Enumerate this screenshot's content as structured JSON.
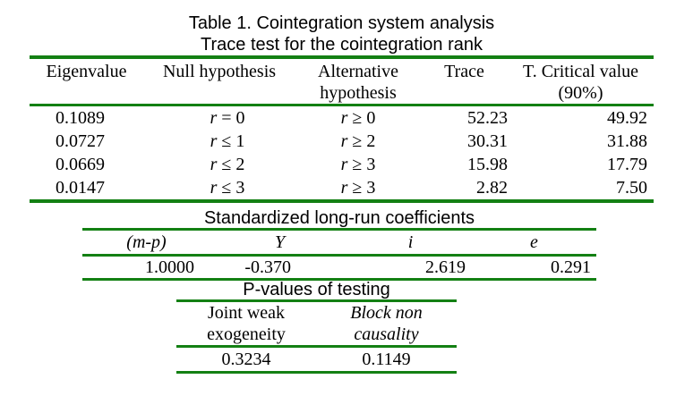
{
  "title": {
    "line1": "Table 1. Cointegration system analysis",
    "line2": "Trace test for the cointegration rank"
  },
  "trace_table": {
    "headers": {
      "eigenvalue": "Eigenvalue",
      "null_hypothesis": "Null hypothesis",
      "alternative_line1": "Alternative",
      "alternative_line2": "hypothesis",
      "trace": "Trace",
      "critical_line1": "T. Critical value",
      "critical_line2": "(90%)"
    },
    "rows": [
      {
        "eigenvalue": "0.1089",
        "null": {
          "var": "r",
          "op": "=",
          "val": "0"
        },
        "alt": {
          "var": "r",
          "op": "≥",
          "val": "0"
        },
        "trace": "52.23",
        "critical": "49.92"
      },
      {
        "eigenvalue": "0.0727",
        "null": {
          "var": "r",
          "op": "≤",
          "val": "1"
        },
        "alt": {
          "var": "r",
          "op": "≥",
          "val": "2"
        },
        "trace": "30.31",
        "critical": "31.88"
      },
      {
        "eigenvalue": "0.0669",
        "null": {
          "var": "r",
          "op": "≤",
          "val": "2"
        },
        "alt": {
          "var": "r",
          "op": "≥",
          "val": "3"
        },
        "trace": "15.98",
        "critical": "17.79"
      },
      {
        "eigenvalue": "0.0147",
        "null": {
          "var": "r",
          "op": "≤",
          "val": "3"
        },
        "alt": {
          "var": "r",
          "op": "≥",
          "val": "3"
        },
        "trace": "2.82",
        "critical": "7.50"
      }
    ]
  },
  "coefficients": {
    "heading": "Standardized long-run coefficients",
    "headers": [
      "(m-p)",
      "Y",
      "i",
      "e"
    ],
    "values": [
      "1.0000",
      "-0.370",
      "2.619",
      "0.291"
    ]
  },
  "pvalues": {
    "heading": "P-values of testing",
    "col1_line1": "Joint weak",
    "col1_line2": "exogeneity",
    "col2_line1": "Block non",
    "col2_line2": "causality",
    "values": [
      "0.3234",
      "0.1149"
    ]
  },
  "colors": {
    "rule_green": "#138013",
    "text": "#000000",
    "background": "#ffffff"
  }
}
